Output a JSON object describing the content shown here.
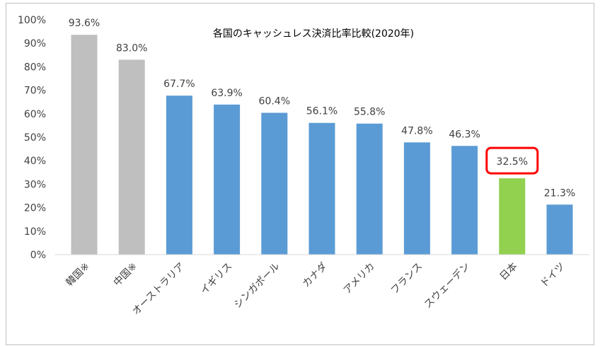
{
  "chart_data": {
    "type": "bar",
    "title": "各国のキャッシュレス決済比率比較(2020年)",
    "categories": [
      "韓国※",
      "中国※",
      "オーストラリア",
      "イギリス",
      "シンガポール",
      "カナダ",
      "アメリカ",
      "フランス",
      "スウェーデン",
      "日本",
      "ドイツ"
    ],
    "values": [
      93.6,
      83.0,
      67.7,
      63.9,
      60.4,
      56.1,
      55.8,
      47.8,
      46.3,
      32.5,
      21.3
    ],
    "data_labels": [
      "93.6%",
      "83.0%",
      "67.7%",
      "63.9%",
      "60.4%",
      "56.1%",
      "55.8%",
      "47.8%",
      "46.3%",
      "32.5%",
      "21.3%"
    ],
    "bar_colors": [
      "#bfbfbf",
      "#bfbfbf",
      "#5b9bd5",
      "#5b9bd5",
      "#5b9bd5",
      "#5b9bd5",
      "#5b9bd5",
      "#5b9bd5",
      "#5b9bd5",
      "#92d050",
      "#5b9bd5"
    ],
    "highlight": {
      "category": "日本",
      "border_color": "#ff0000"
    },
    "ylim": [
      0,
      100
    ],
    "yticks": [
      "0%",
      "10%",
      "20%",
      "30%",
      "40%",
      "50%",
      "60%",
      "70%",
      "80%",
      "90%",
      "100%"
    ],
    "xlabel": "",
    "ylabel": "",
    "grid": false,
    "legend": "none"
  }
}
